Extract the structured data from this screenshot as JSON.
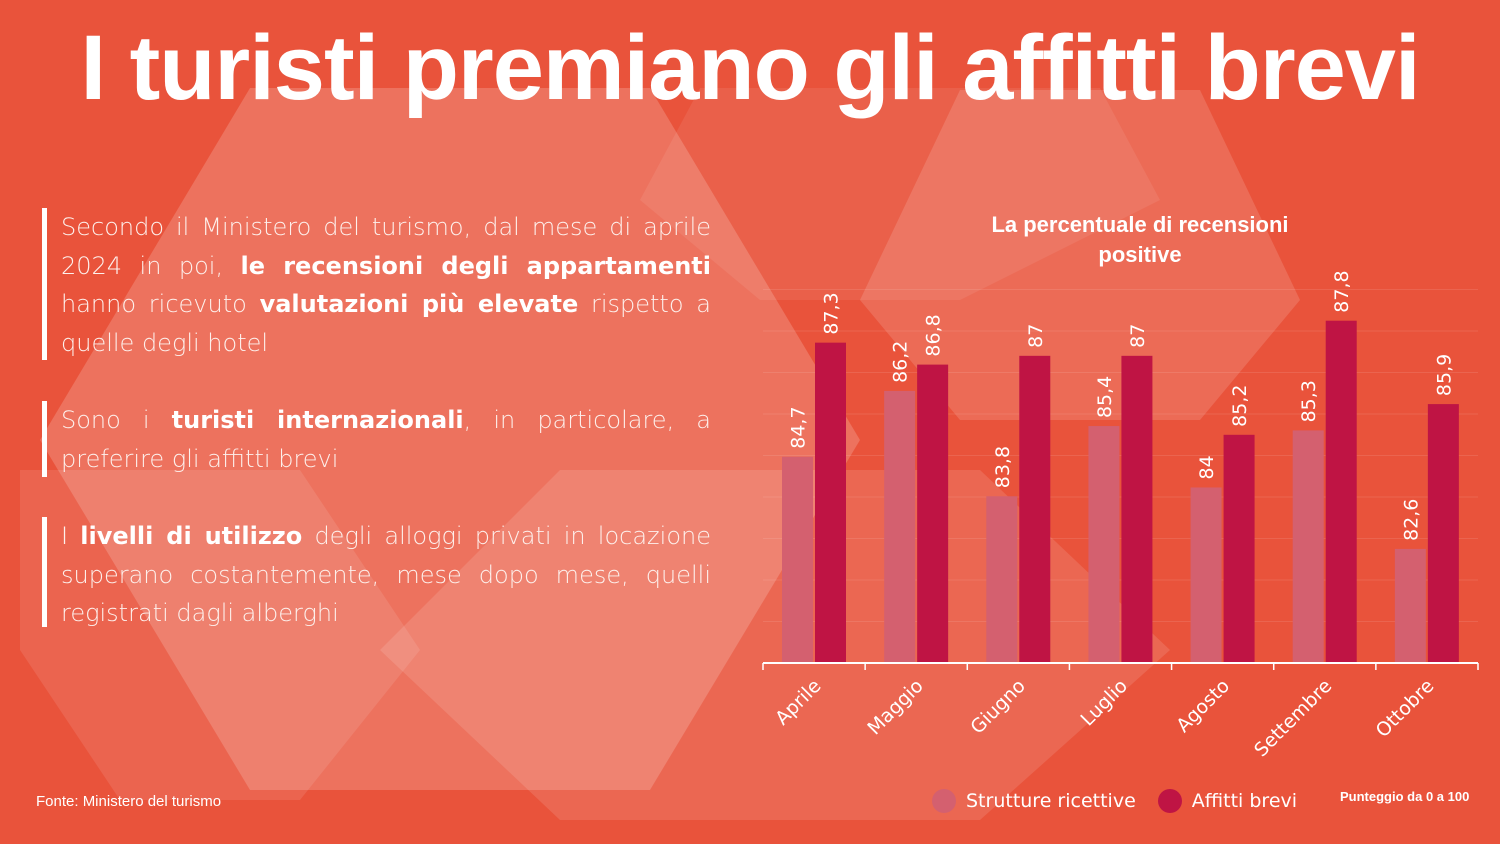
{
  "header": {
    "title": "I turisti premiano gli affitti brevi"
  },
  "paragraphs": {
    "p1": {
      "t1": "Secondo il Ministero del turismo, dal mese di aprile 2024 in poi, ",
      "b1": "le recensioni degli appartamenti",
      "t2": " hanno ricevuto ",
      "b2": "valutazioni più elevate",
      "t3": " rispetto a quelle degli hotel"
    },
    "p2": {
      "t1": "Sono i ",
      "b1": "turisti internazionali",
      "t2": ", in particolare, a preferire gli affitti brevi"
    },
    "p3": {
      "t1": "I ",
      "b1": "livelli di utilizzo",
      "t2": " degli alloggi privati in locazione superano costantemente, mese dopo mese, quelli registrati dagli alberghi"
    }
  },
  "chart_data": {
    "type": "bar",
    "title": "La percentuale di recensioni positive",
    "categories": [
      "Aprile",
      "Maggio",
      "Giugno",
      "Luglio",
      "Agosto",
      "Settembre",
      "Ottobre"
    ],
    "series": [
      {
        "name": "Strutture ricettive",
        "color": "#d4606f",
        "values": [
          84.7,
          86.2,
          83.8,
          85.4,
          84,
          85.3,
          82.6
        ],
        "labels": [
          "84,7",
          "86,2",
          "83,8",
          "85,4",
          "84",
          "85,3",
          "82,6"
        ]
      },
      {
        "name": "Affitti brevi",
        "color": "#bf1444",
        "values": [
          87.3,
          86.8,
          87,
          87,
          85.2,
          87.8,
          85.9
        ],
        "labels": [
          "87,3",
          "86,8",
          "87",
          "87",
          "85,2",
          "87,8",
          "85,9"
        ]
      }
    ],
    "ylim": [
      80,
      88.5
    ],
    "grid": true,
    "legend_position": "bottom",
    "note": "Punteggio da 0 a 100"
  },
  "footer": {
    "source": "Fonte: Ministero del turismo"
  }
}
